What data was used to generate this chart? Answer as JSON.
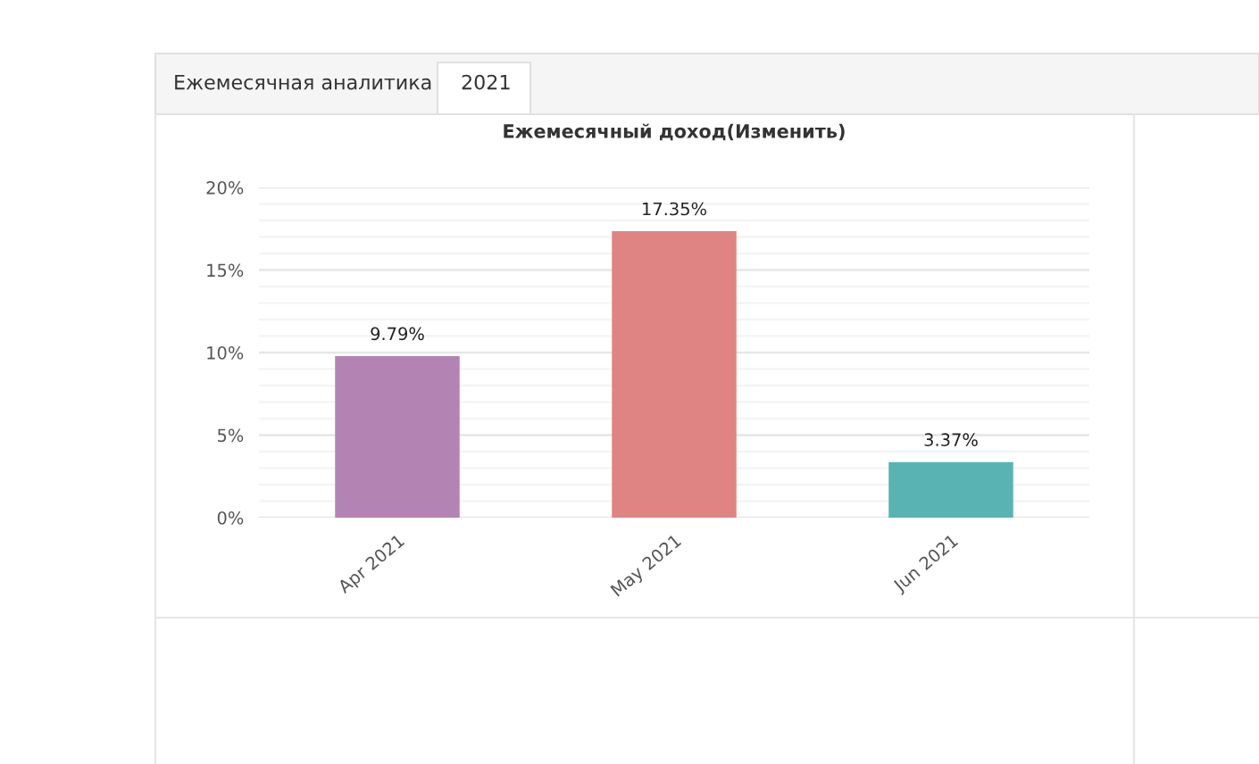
{
  "chart_data": {
    "type": "bar",
    "title": "Ежемесячный доход(Изменить)",
    "categories": [
      "Apr 2021",
      "May 2021",
      "Jun 2021"
    ],
    "values": [
      9.79,
      17.35,
      3.37
    ],
    "colors": [
      "#b384b3",
      "#e08483",
      "#59b3b3"
    ],
    "value_labels": [
      "9.79%",
      "17.35%",
      "3.37%"
    ],
    "ylim": [
      0,
      20
    ],
    "yticks": [
      {
        "value": 0,
        "label": "0%"
      },
      {
        "value": 1,
        "label": null
      },
      {
        "value": 2,
        "label": null
      },
      {
        "value": 3,
        "label": null
      },
      {
        "value": 4,
        "label": null
      },
      {
        "value": 5,
        "label": "5%"
      },
      {
        "value": 6,
        "label": null
      },
      {
        "value": 7,
        "label": null
      },
      {
        "value": 8,
        "label": null
      },
      {
        "value": 9,
        "label": null
      },
      {
        "value": 10,
        "label": "10%"
      },
      {
        "value": 11,
        "label": null
      },
      {
        "value": 12,
        "label": null
      },
      {
        "value": 13,
        "label": null
      },
      {
        "value": 14,
        "label": null
      },
      {
        "value": 15,
        "label": "15%"
      },
      {
        "value": 16,
        "label": null
      },
      {
        "value": 17,
        "label": null
      },
      {
        "value": 18,
        "label": null
      },
      {
        "value": 19,
        "label": null
      },
      {
        "value": 20,
        "label": "20%"
      }
    ],
    "grid": "y",
    "annotations": [
      "Ежемесячная аналитика",
      "2021"
    ]
  }
}
